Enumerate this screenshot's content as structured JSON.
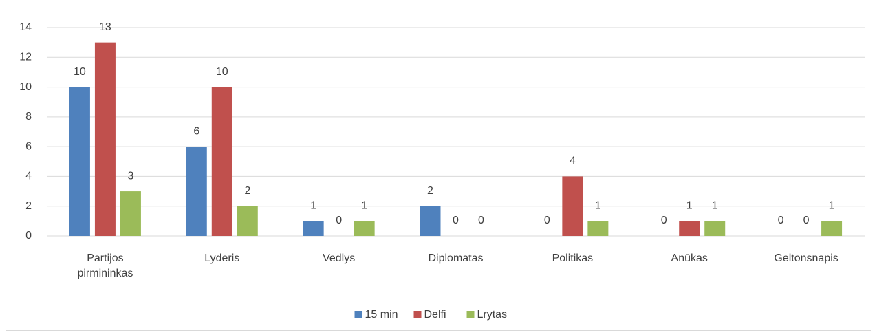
{
  "chart_data": {
    "type": "bar",
    "categories": [
      "Partijos pirmininkas",
      "Lyderis",
      "Vedlys",
      "Diplomatas",
      "Politikas",
      "Anūkas",
      "Geltonsnapis"
    ],
    "series": [
      {
        "name": "15 min",
        "color": "#4f81bd",
        "values": [
          10,
          6,
          1,
          2,
          0,
          0,
          0
        ]
      },
      {
        "name": "Delfi",
        "color": "#c0504d",
        "values": [
          13,
          10,
          0,
          0,
          4,
          1,
          0
        ]
      },
      {
        "name": "Lrytas",
        "color": "#9bbb59",
        "values": [
          3,
          2,
          1,
          0,
          1,
          1,
          1
        ]
      }
    ],
    "ylim": [
      0,
      14
    ],
    "yticks": [
      0,
      2,
      4,
      6,
      8,
      10,
      12,
      14
    ],
    "grid": true,
    "legend": "bottom"
  }
}
